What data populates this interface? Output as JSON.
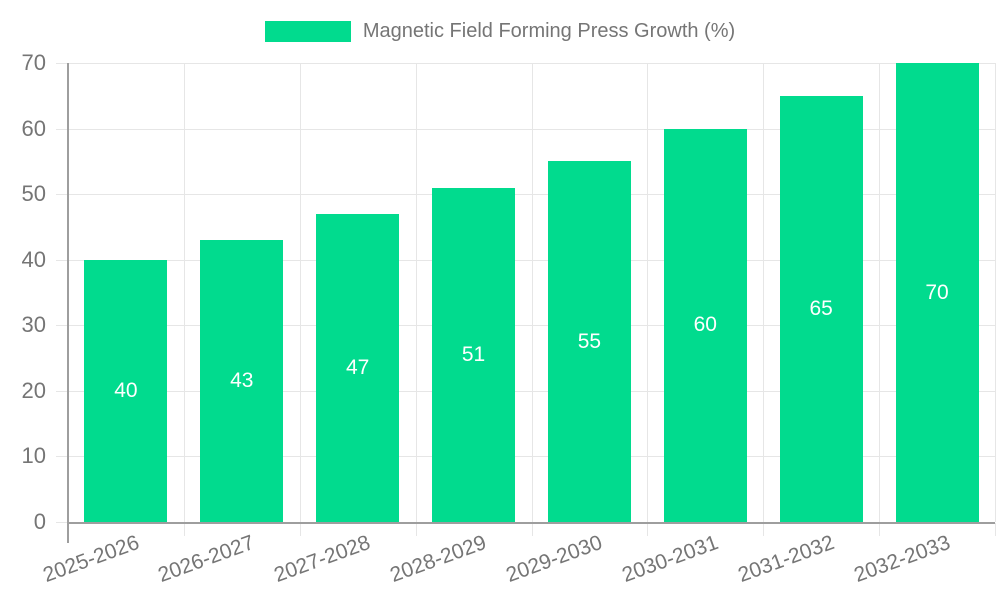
{
  "legend": {
    "label": "Magnetic Field Forming Press Growth (%)"
  },
  "chart_data": {
    "type": "bar",
    "title": "Magnetic Field Forming Press Growth (%)",
    "categories": [
      "2025-2026",
      "2026-2027",
      "2027-2028",
      "2028-2029",
      "2029-2030",
      "2030-2031",
      "2031-2032",
      "2032-2033"
    ],
    "values": [
      40,
      43,
      47,
      51,
      55,
      60,
      65,
      70
    ],
    "xlabel": "",
    "ylabel": "",
    "ylim": [
      0,
      70
    ],
    "yticks": [
      0,
      10,
      20,
      30,
      40,
      50,
      60,
      70
    ],
    "grid": true,
    "legend_position": "top",
    "x_label_rotation_deg": -20,
    "colors": {
      "bar": "#01DB8E",
      "bar_value_label": "#FFFFFF",
      "grid": "#E6E6E6",
      "axis_line": "#9E9E9E",
      "axis_text": "#757575",
      "background": "#FFFFFF"
    }
  }
}
